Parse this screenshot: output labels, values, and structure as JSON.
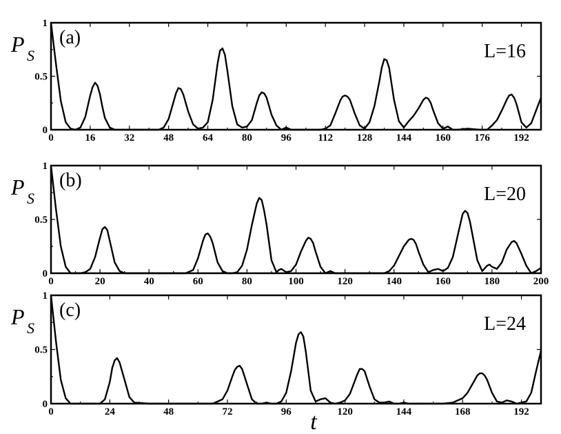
{
  "figure": {
    "ylabel_main": "P",
    "ylabel_sub": "S",
    "xlabel": "t"
  },
  "chart_data": [
    {
      "type": "line",
      "panel": "(a)",
      "annotation": "L=16",
      "xlim": [
        0,
        200
      ],
      "ylim": [
        0,
        1
      ],
      "xticks": [
        0,
        16,
        32,
        48,
        64,
        80,
        96,
        112,
        128,
        144,
        160,
        176,
        192
      ],
      "yticks": [
        0,
        0.5,
        1
      ],
      "ytick_labels": [
        "0",
        "0.5",
        "1"
      ],
      "series": [
        {
          "x": [
            0,
            2,
            4,
            6,
            8,
            10,
            12,
            14,
            16,
            17,
            18,
            19,
            20,
            21,
            22,
            24,
            26,
            28,
            30,
            35,
            40,
            44,
            46,
            48,
            50,
            51,
            52,
            53,
            54,
            56,
            58,
            60,
            62,
            64,
            66,
            68,
            69,
            70,
            71,
            72,
            74,
            76,
            78,
            80,
            82,
            84,
            85,
            86,
            87,
            88,
            90,
            92,
            94,
            96,
            98,
            100,
            105,
            110,
            112,
            114,
            116,
            118,
            119,
            120,
            121,
            122,
            124,
            126,
            128,
            130,
            132,
            134,
            135,
            136,
            137,
            138,
            140,
            142,
            144,
            146,
            148,
            150,
            152,
            153,
            154,
            155,
            156,
            158,
            160,
            162,
            164,
            166,
            170,
            175,
            178,
            180,
            182,
            184,
            186,
            187,
            188,
            189,
            190,
            192,
            194,
            196,
            198,
            200
          ],
          "y": [
            1.0,
            0.62,
            0.27,
            0.07,
            0.01,
            0.0,
            0.02,
            0.12,
            0.32,
            0.4,
            0.44,
            0.41,
            0.33,
            0.21,
            0.11,
            0.02,
            0.0,
            0.0,
            0.0,
            0.0,
            0.0,
            0.0,
            0.02,
            0.1,
            0.26,
            0.34,
            0.39,
            0.38,
            0.33,
            0.17,
            0.05,
            0.01,
            0.02,
            0.07,
            0.28,
            0.62,
            0.74,
            0.76,
            0.7,
            0.55,
            0.22,
            0.05,
            0.02,
            0.03,
            0.09,
            0.25,
            0.32,
            0.35,
            0.34,
            0.3,
            0.14,
            0.04,
            0.0,
            0.02,
            0.0,
            0.0,
            0.0,
            0.0,
            0.01,
            0.04,
            0.15,
            0.27,
            0.31,
            0.32,
            0.31,
            0.28,
            0.15,
            0.04,
            0.01,
            0.07,
            0.22,
            0.45,
            0.58,
            0.66,
            0.65,
            0.58,
            0.28,
            0.08,
            0.02,
            0.08,
            0.13,
            0.2,
            0.28,
            0.3,
            0.29,
            0.25,
            0.18,
            0.06,
            0.01,
            0.03,
            0.0,
            0.0,
            0.01,
            0.0,
            0.0,
            0.04,
            0.09,
            0.18,
            0.28,
            0.32,
            0.33,
            0.3,
            0.24,
            0.07,
            0.02,
            0.06,
            0.18,
            0.3
          ]
        }
      ]
    },
    {
      "type": "line",
      "panel": "(b)",
      "annotation": "L=20",
      "xlim": [
        0,
        200
      ],
      "ylim": [
        0,
        1
      ],
      "xticks": [
        0,
        20,
        40,
        60,
        80,
        100,
        120,
        140,
        160,
        180,
        200
      ],
      "yticks": [
        0,
        0.5,
        1
      ],
      "ytick_labels": [
        "0",
        "0.5",
        "1"
      ],
      "series": [
        {
          "x": [
            0,
            2,
            4,
            6,
            8,
            10,
            12,
            14,
            16,
            18,
            20,
            21,
            22,
            23,
            24,
            26,
            28,
            30,
            40,
            50,
            55,
            58,
            60,
            62,
            63,
            64,
            65,
            66,
            68,
            70,
            72,
            74,
            76,
            78,
            80,
            82,
            84,
            85,
            86,
            87,
            88,
            90,
            92,
            93,
            94,
            96,
            98,
            100,
            102,
            104,
            105,
            106,
            107,
            108,
            110,
            112,
            114,
            116,
            118,
            120,
            130,
            136,
            138,
            140,
            142,
            144,
            146,
            147,
            148,
            149,
            150,
            152,
            154,
            156,
            158,
            160,
            162,
            164,
            166,
            168,
            169,
            170,
            171,
            172,
            174,
            176,
            178,
            179,
            180,
            182,
            184,
            186,
            188,
            189,
            190,
            192,
            194,
            196,
            198,
            200
          ],
          "y": [
            1.0,
            0.6,
            0.25,
            0.06,
            0.0,
            0.0,
            0.0,
            0.01,
            0.04,
            0.15,
            0.33,
            0.41,
            0.43,
            0.4,
            0.3,
            0.1,
            0.02,
            0.0,
            0.0,
            0.0,
            0.0,
            0.03,
            0.14,
            0.3,
            0.36,
            0.37,
            0.34,
            0.28,
            0.1,
            0.02,
            0.0,
            0.0,
            0.01,
            0.07,
            0.22,
            0.45,
            0.65,
            0.7,
            0.68,
            0.58,
            0.45,
            0.12,
            0.01,
            0.03,
            0.04,
            0.01,
            0.02,
            0.08,
            0.2,
            0.3,
            0.33,
            0.32,
            0.28,
            0.2,
            0.06,
            0.0,
            0.02,
            0.0,
            0.0,
            0.0,
            0.0,
            0.0,
            0.02,
            0.07,
            0.16,
            0.25,
            0.31,
            0.32,
            0.31,
            0.27,
            0.2,
            0.08,
            0.01,
            0.03,
            0.04,
            0.02,
            0.05,
            0.15,
            0.35,
            0.55,
            0.58,
            0.56,
            0.48,
            0.36,
            0.12,
            0.02,
            0.07,
            0.08,
            0.06,
            0.04,
            0.1,
            0.22,
            0.29,
            0.3,
            0.28,
            0.18,
            0.07,
            0.0,
            0.02,
            0.05
          ]
        }
      ]
    },
    {
      "type": "line",
      "panel": "(c)",
      "annotation": "L=24",
      "xlim": [
        0,
        200
      ],
      "ylim": [
        0,
        1
      ],
      "xticks": [
        0,
        24,
        48,
        72,
        96,
        120,
        144,
        168,
        192
      ],
      "yticks": [
        0,
        0.5,
        1
      ],
      "ytick_labels": [
        "0",
        "0.5",
        "1"
      ],
      "series": [
        {
          "x": [
            0,
            2,
            4,
            6,
            8,
            10,
            15,
            20,
            22,
            24,
            25,
            26,
            27,
            28,
            30,
            32,
            34,
            40,
            50,
            60,
            66,
            70,
            72,
            74,
            75,
            76,
            77,
            78,
            80,
            82,
            84,
            86,
            88,
            90,
            92,
            94,
            96,
            98,
            100,
            101,
            102,
            103,
            104,
            106,
            108,
            110,
            112,
            114,
            116,
            118,
            120,
            122,
            124,
            125,
            126,
            127,
            128,
            130,
            132,
            134,
            136,
            138,
            140,
            142,
            144,
            146,
            148,
            150,
            155,
            160,
            164,
            168,
            170,
            172,
            174,
            175,
            176,
            177,
            178,
            180,
            182,
            184,
            186,
            188,
            190,
            192,
            194,
            196,
            198,
            200
          ],
          "y": [
            1.0,
            0.58,
            0.22,
            0.05,
            0.0,
            0.0,
            0.0,
            0.0,
            0.04,
            0.2,
            0.33,
            0.4,
            0.42,
            0.38,
            0.22,
            0.06,
            0.01,
            0.0,
            0.0,
            0.0,
            0.0,
            0.04,
            0.12,
            0.25,
            0.31,
            0.34,
            0.35,
            0.32,
            0.18,
            0.04,
            0.0,
            0.0,
            0.01,
            0.0,
            0.0,
            0.02,
            0.1,
            0.3,
            0.56,
            0.64,
            0.66,
            0.62,
            0.48,
            0.12,
            0.02,
            0.04,
            0.05,
            0.01,
            0.0,
            0.01,
            0.03,
            0.09,
            0.21,
            0.27,
            0.32,
            0.32,
            0.3,
            0.16,
            0.04,
            0.01,
            0.01,
            0.02,
            0.0,
            0.0,
            0.01,
            0.0,
            0.0,
            0.0,
            0.0,
            0.0,
            0.01,
            0.05,
            0.1,
            0.18,
            0.26,
            0.28,
            0.28,
            0.26,
            0.22,
            0.1,
            0.02,
            0.01,
            0.03,
            0.02,
            0.0,
            0.01,
            0.02,
            0.1,
            0.3,
            0.49
          ]
        }
      ]
    }
  ]
}
